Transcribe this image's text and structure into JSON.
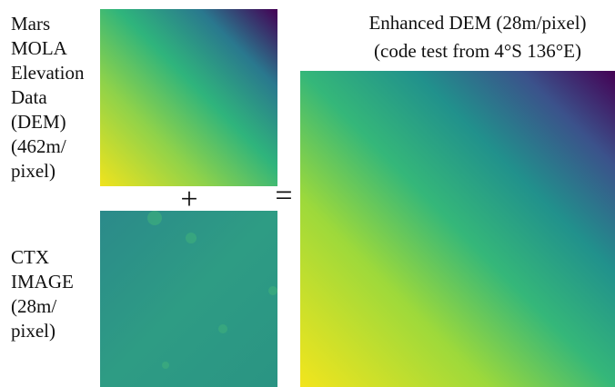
{
  "dem_label": {
    "lines": [
      "Mars",
      "MOLA",
      "Elevation",
      "Data",
      "(DEM)",
      "(462m/",
      "pixel)"
    ]
  },
  "ctx_label": {
    "lines": [
      "CTX",
      "IMAGE",
      "(28m/",
      "pixel)"
    ]
  },
  "plus": "+",
  "equals": "=",
  "result_label": {
    "lines": [
      "Enhanced DEM (28m/pixel)",
      "(code test from 4°S 136°E)"
    ]
  }
}
